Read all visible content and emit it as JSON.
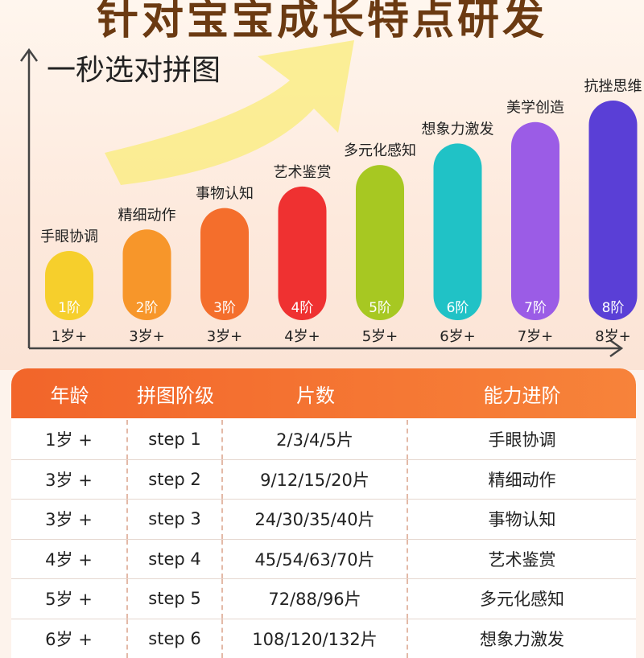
{
  "header": {
    "title": "针对宝宝成长特点研发",
    "subtitle": "一秒选对拼图"
  },
  "chart_data": {
    "type": "bar",
    "categories": [
      "1阶",
      "2阶",
      "3阶",
      "4阶",
      "5阶",
      "6阶",
      "7阶",
      "8阶"
    ],
    "values": [
      1,
      2,
      3,
      4,
      5,
      6,
      7,
      8
    ],
    "ages": [
      "1岁+",
      "3岁+",
      "3岁+",
      "4岁+",
      "5岁+",
      "6岁+",
      "7岁+",
      "8岁+"
    ],
    "skills": [
      "手眼协调",
      "精细动作",
      "事物认知",
      "艺术鉴赏",
      "多元化感知",
      "想象力激发",
      "美学创造",
      "抗挫思维"
    ],
    "colors": [
      "#f6cf2c",
      "#f7962a",
      "#f46e2c",
      "#ef3131",
      "#a7c822",
      "#20c2c6",
      "#9b5ce6",
      "#5a3fd6"
    ],
    "ylim": [
      0,
      8.8
    ],
    "grid": false
  },
  "table": {
    "headers": [
      "年龄",
      "拼图阶级",
      "片数",
      "能力进阶"
    ],
    "rows": [
      [
        "1岁 +",
        "step 1",
        "2/3/4/5片",
        "手眼协调"
      ],
      [
        "3岁 +",
        "step 2",
        "9/12/15/20片",
        "精细动作"
      ],
      [
        "3岁 +",
        "step 3",
        "24/30/35/40片",
        "事物认知"
      ],
      [
        "4岁 +",
        "step 4",
        "45/54/63/70片",
        "艺术鉴赏"
      ],
      [
        "5岁 +",
        "step 5",
        "72/88/96片",
        "多元化感知"
      ],
      [
        "6岁 +",
        "step 6",
        "108/120/132片",
        "想象力激发"
      ]
    ]
  }
}
